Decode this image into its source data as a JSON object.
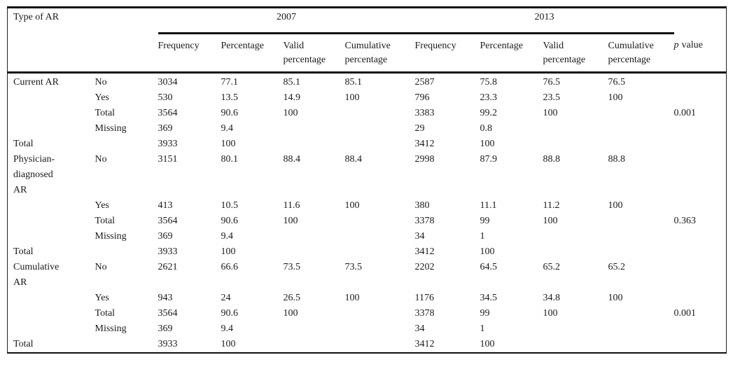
{
  "table": {
    "corner_label": "Type of AR",
    "year_groups": [
      "2007",
      "2013"
    ],
    "sub_headers": [
      "Frequency",
      "Percentage",
      "Valid percentage",
      "Cumulative percentage"
    ],
    "p_value_header": {
      "italic_part": "p",
      "text_part": "value"
    },
    "sections": [
      {
        "label": "Current AR",
        "rows": [
          {
            "section_label": "Current AR",
            "category": "No",
            "values": [
              "3034",
              "77.1",
              "85.1",
              "85.1",
              "2587",
              "75.8",
              "76.5",
              "76.5",
              ""
            ]
          },
          {
            "section_label": "",
            "category": "Yes",
            "values": [
              "530",
              "13.5",
              "14.9",
              "100",
              "796",
              "23.3",
              "23.5",
              "100",
              ""
            ]
          },
          {
            "section_label": "",
            "category": "Total",
            "values": [
              "3564",
              "90.6",
              "100",
              "",
              "3383",
              "99.2",
              "100",
              "",
              "0.001"
            ]
          },
          {
            "section_label": "",
            "category": "Missing",
            "values": [
              "369",
              "9.4",
              "",
              "",
              "29",
              "0.8",
              "",
              "",
              ""
            ]
          },
          {
            "section_label": "Total",
            "category": "",
            "values": [
              "3933",
              "100",
              "",
              "",
              "3412",
              "100",
              "",
              "",
              ""
            ]
          }
        ]
      },
      {
        "label": "Physician-diagnosed AR",
        "rows": [
          {
            "section_label": "Physician-diagnosed AR",
            "category": "No",
            "values": [
              "3151",
              "80.1",
              "88.4",
              "88.4",
              "2998",
              "87.9",
              "88.8",
              "88.8",
              ""
            ]
          },
          {
            "section_label": "",
            "category": "Yes",
            "values": [
              "413",
              "10.5",
              "11.6",
              "100",
              "380",
              "11.1",
              "11.2",
              "100",
              ""
            ]
          },
          {
            "section_label": "",
            "category": "Total",
            "values": [
              "3564",
              "90.6",
              "100",
              "",
              "3378",
              "99",
              "100",
              "",
              "0.363"
            ]
          },
          {
            "section_label": "",
            "category": "Missing",
            "values": [
              "369",
              "9.4",
              "",
              "",
              "34",
              "1",
              "",
              "",
              ""
            ]
          },
          {
            "section_label": "Total",
            "category": "",
            "values": [
              "3933",
              "100",
              "",
              "",
              "3412",
              "100",
              "",
              "",
              ""
            ]
          }
        ]
      },
      {
        "label": "Cumulative AR",
        "rows": [
          {
            "section_label": "Cumulative AR",
            "category": "No",
            "values": [
              "2621",
              "66.6",
              "73.5",
              "73.5",
              "2202",
              "64.5",
              "65.2",
              "65.2",
              ""
            ]
          },
          {
            "section_label": "",
            "category": "Yes",
            "values": [
              "943",
              "24",
              "26.5",
              "100",
              "1176",
              "34.5",
              "34.8",
              "100",
              ""
            ]
          },
          {
            "section_label": "",
            "category": "Total",
            "values": [
              "3564",
              "90.6",
              "100",
              "",
              "3378",
              "99",
              "100",
              "",
              "0.001"
            ]
          },
          {
            "section_label": "",
            "category": "Missing",
            "values": [
              "369",
              "9.4",
              "",
              "",
              "34",
              "1",
              "",
              "",
              ""
            ]
          },
          {
            "section_label": "Total",
            "category": "",
            "values": [
              "3933",
              "100",
              "",
              "",
              "3412",
              "100",
              "",
              "",
              ""
            ]
          }
        ]
      }
    ],
    "colors": {
      "text": "#1a1a1a",
      "rule": "#111111",
      "background": "#ffffff"
    }
  }
}
